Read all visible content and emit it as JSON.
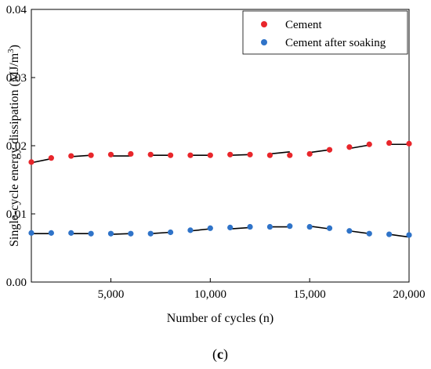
{
  "figure": {
    "panel_label": "(c)",
    "panel_open": "(",
    "panel_letter": "c",
    "panel_close": ")"
  },
  "chart_data": {
    "type": "scatter",
    "title": "",
    "xlabel": "Number of cycles (n)",
    "ylabel": "Single-cycle energy dissipation (MJ/m3)",
    "ylabel_main": "Single-cycle energy dissipation (MJ/m",
    "ylabel_sup": "3",
    "ylabel_end": ")",
    "xlim": [
      1000,
      20000
    ],
    "ylim": [
      0,
      0.04
    ],
    "xticks": [
      5000,
      10000,
      15000,
      20000
    ],
    "xtick_labels": [
      "5,000",
      "10,000",
      "15,000",
      "20,000"
    ],
    "yticks": [
      0,
      0.01,
      0.02,
      0.03,
      0.04
    ],
    "ytick_labels": [
      "0.00",
      "0.01",
      "0.02",
      "0.03",
      "0.04"
    ],
    "legend": "top-right",
    "grid": false,
    "fit_segments": "black lines joining each pair of adjacent points",
    "series": [
      {
        "name": "Cement",
        "color": "#e8262b",
        "x": [
          1000,
          2000,
          3000,
          4000,
          5000,
          6000,
          7000,
          8000,
          9000,
          10000,
          11000,
          12000,
          13000,
          14000,
          15000,
          16000,
          17000,
          18000,
          19000,
          20000
        ],
        "y": [
          0.0176,
          0.0182,
          0.0185,
          0.0186,
          0.0187,
          0.0188,
          0.0187,
          0.0186,
          0.0186,
          0.0186,
          0.0187,
          0.0187,
          0.0186,
          0.0186,
          0.0188,
          0.0194,
          0.0198,
          0.0202,
          0.0204,
          0.0203
        ],
        "fit_segments": [
          {
            "x": [
              1000,
              2000
            ],
            "y": [
              0.0175,
              0.0181
            ]
          },
          {
            "x": [
              3000,
              4000
            ],
            "y": [
              0.0184,
              0.0186
            ]
          },
          {
            "x": [
              5000,
              6000
            ],
            "y": [
              0.0185,
              0.0185
            ]
          },
          {
            "x": [
              7000,
              8000
            ],
            "y": [
              0.0186,
              0.0186
            ]
          },
          {
            "x": [
              9000,
              10000
            ],
            "y": [
              0.0186,
              0.0186
            ]
          },
          {
            "x": [
              11000,
              12000
            ],
            "y": [
              0.0186,
              0.0187
            ]
          },
          {
            "x": [
              13000,
              14000
            ],
            "y": [
              0.0188,
              0.0191
            ]
          },
          {
            "x": [
              15000,
              16000
            ],
            "y": [
              0.019,
              0.0194
            ]
          },
          {
            "x": [
              17000,
              18000
            ],
            "y": [
              0.0196,
              0.0201
            ]
          },
          {
            "x": [
              19000,
              20000
            ],
            "y": [
              0.0202,
              0.0202
            ]
          }
        ]
      },
      {
        "name": "Cement after soaking",
        "color": "#2f73c8",
        "x": [
          1000,
          2000,
          3000,
          4000,
          5000,
          6000,
          7000,
          8000,
          9000,
          10000,
          11000,
          12000,
          13000,
          14000,
          15000,
          16000,
          17000,
          18000,
          19000,
          20000
        ],
        "y": [
          0.0072,
          0.0072,
          0.0072,
          0.0071,
          0.0071,
          0.0071,
          0.0071,
          0.0073,
          0.0076,
          0.0079,
          0.008,
          0.0081,
          0.0081,
          0.0082,
          0.0081,
          0.0079,
          0.0075,
          0.0071,
          0.007,
          0.0069
        ],
        "fit_segments": [
          {
            "x": [
              1000,
              2000
            ],
            "y": [
              0.0071,
              0.0071
            ]
          },
          {
            "x": [
              3000,
              4000
            ],
            "y": [
              0.0071,
              0.0071
            ]
          },
          {
            "x": [
              5000,
              6000
            ],
            "y": [
              0.007,
              0.0071
            ]
          },
          {
            "x": [
              7000,
              8000
            ],
            "y": [
              0.0071,
              0.0073
            ]
          },
          {
            "x": [
              9000,
              10000
            ],
            "y": [
              0.0075,
              0.0078
            ]
          },
          {
            "x": [
              11000,
              12000
            ],
            "y": [
              0.0078,
              0.008
            ]
          },
          {
            "x": [
              13000,
              14000
            ],
            "y": [
              0.0081,
              0.0081
            ]
          },
          {
            "x": [
              15000,
              16000
            ],
            "y": [
              0.0082,
              0.0078
            ]
          },
          {
            "x": [
              17000,
              18000
            ],
            "y": [
              0.0075,
              0.0071
            ]
          },
          {
            "x": [
              19000,
              20000
            ],
            "y": [
              0.007,
              0.0066
            ]
          }
        ]
      }
    ]
  }
}
